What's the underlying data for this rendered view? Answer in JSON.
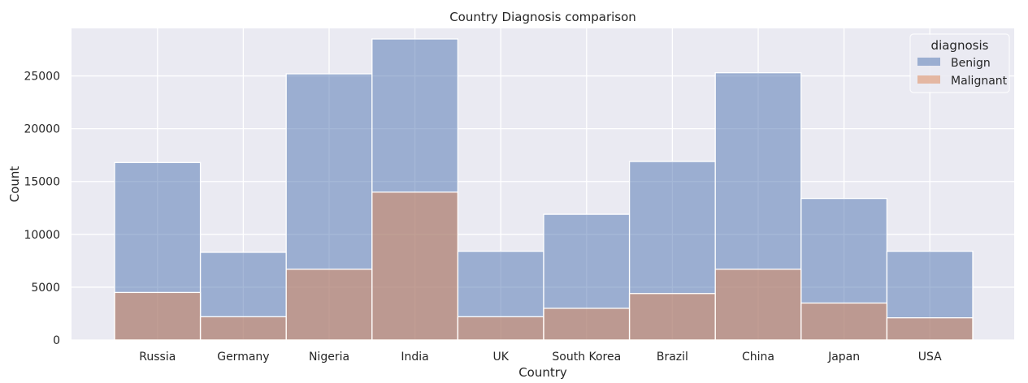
{
  "chart_data": {
    "type": "bar",
    "title": "Country Diagnosis comparison",
    "xlabel": "Country",
    "ylabel": "Count",
    "categories": [
      "Russia",
      "Germany",
      "Nigeria",
      "India",
      "UK",
      "South Korea",
      "Brazil",
      "China",
      "Japan",
      "USA"
    ],
    "series": [
      {
        "name": "Benign",
        "values": [
          16800,
          8300,
          25200,
          28500,
          8400,
          11900,
          16900,
          25300,
          13400,
          8400
        ]
      },
      {
        "name": "Malignant",
        "values": [
          4500,
          2200,
          6700,
          14000,
          2200,
          3000,
          4400,
          6700,
          3500,
          2100
        ]
      }
    ],
    "ylim": [
      0,
      29500
    ],
    "yticks": [
      0,
      5000,
      10000,
      15000,
      20000,
      25000
    ],
    "legend": {
      "title": "diagnosis",
      "placement": "top-right"
    },
    "grid": true,
    "colors": {
      "Benign": "#4c72b0",
      "Malignant": "#dd8452",
      "background": "#eaeaf2",
      "grid": "#ffffff"
    }
  }
}
